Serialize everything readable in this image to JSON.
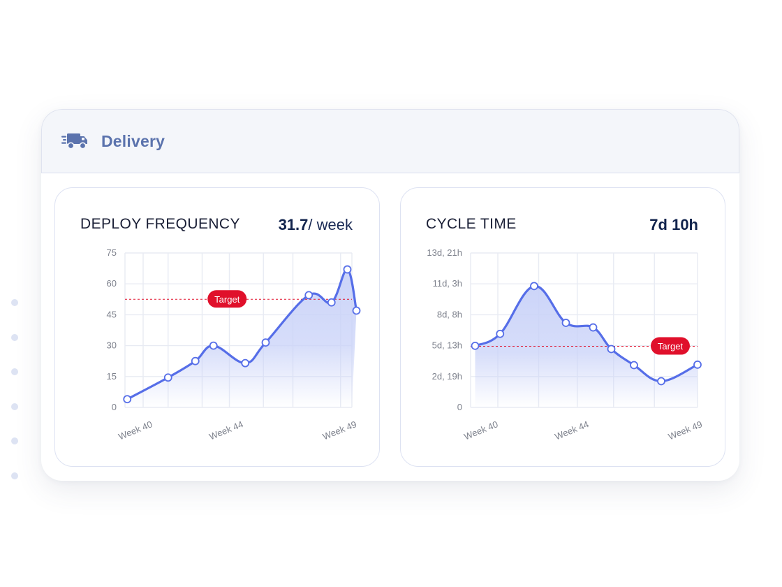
{
  "panel": {
    "title": "Delivery",
    "icon": "truck-icon"
  },
  "side_dots": 6,
  "colors": {
    "line": "#566ee8",
    "fill": "#c9d2f8",
    "target": "#e0102b",
    "grid": "#e8ebf3",
    "tick": "#7d818c",
    "panel_title": "#5b73ad"
  },
  "cards": {
    "deploy": {
      "title": "DEPLOY FREQUENCY",
      "value_big": "31.7",
      "value_unit": "/ week"
    },
    "cycle": {
      "title": "CYCLE TIME",
      "value_big": "7d 10h",
      "value_unit": ""
    }
  },
  "chart_data": [
    {
      "type": "area",
      "title": "DEPLOY FREQUENCY",
      "grid": true,
      "ylim": [
        0,
        75
      ],
      "yticks": [
        "0",
        "15",
        "30",
        "45",
        "60",
        "75"
      ],
      "xlim": [
        39.8,
        49.8
      ],
      "xticks": [
        40,
        44,
        49
      ],
      "xtick_labels": [
        "Week 40",
        "Week 44",
        "Week 49"
      ],
      "xgrid": [
        40.6,
        41.7,
        43.2,
        44.4,
        45.9,
        47.2,
        49.3
      ],
      "target": {
        "label": "Target",
        "value": 52.5,
        "label_x": 44.3
      },
      "points": [
        {
          "x": 39.9,
          "y": 4
        },
        {
          "x": 41.7,
          "y": 14.5
        },
        {
          "x": 42.9,
          "y": 22.5
        },
        {
          "x": 43.7,
          "y": 30
        },
        {
          "x": 45.1,
          "y": 21.5
        },
        {
          "x": 46.0,
          "y": 31.5
        },
        {
          "x": 47.9,
          "y": 54.5
        },
        {
          "x": 48.9,
          "y": 51
        },
        {
          "x": 49.6,
          "y": 67
        },
        {
          "x": 50.0,
          "y": 47
        }
      ]
    },
    {
      "type": "area",
      "title": "CYCLE TIME",
      "grid": true,
      "ylim": [
        0,
        336
      ],
      "yticks": [
        "0",
        "2d, 19h",
        "5d, 13h",
        "8d, 8h",
        "11d, 3h",
        "13d, 21h"
      ],
      "xlim": [
        39.8,
        49.8
      ],
      "xticks": [
        40,
        44,
        49
      ],
      "xtick_labels": [
        "Week 40",
        "Week 44",
        "Week 49"
      ],
      "xgrid": [
        41.0,
        42.8,
        44.5,
        46.1,
        47.9
      ],
      "target": {
        "label": "Target",
        "value": 133,
        "label_x": 48.6
      },
      "points": [
        {
          "x": 40.0,
          "y": 134
        },
        {
          "x": 41.1,
          "y": 160
        },
        {
          "x": 42.6,
          "y": 264
        },
        {
          "x": 44.0,
          "y": 184
        },
        {
          "x": 45.2,
          "y": 174
        },
        {
          "x": 46.0,
          "y": 127
        },
        {
          "x": 47.0,
          "y": 92
        },
        {
          "x": 48.2,
          "y": 57
        },
        {
          "x": 49.8,
          "y": 93
        }
      ]
    }
  ]
}
